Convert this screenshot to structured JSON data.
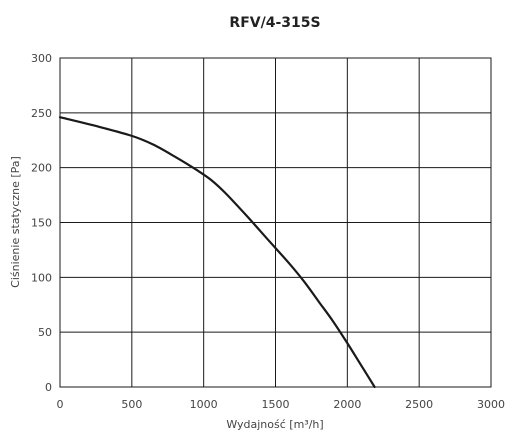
{
  "chart_data": {
    "type": "line",
    "title": "RFV/4-315S",
    "xlabel": "Wydajność [m³/h]",
    "ylabel": "Ciśnienie statyczne [Pa]",
    "xlim": [
      0,
      3000
    ],
    "ylim": [
      0,
      300
    ],
    "xticks": [
      0,
      500,
      1000,
      1500,
      2000,
      2500,
      3000
    ],
    "yticks": [
      0,
      50,
      100,
      150,
      200,
      250,
      300
    ],
    "grid": true,
    "series": [
      {
        "color": "#1a1a1a",
        "x": [
          0,
          250,
          500,
          650,
          800,
          950,
          1050,
          1150,
          1300,
          1450,
          1600,
          1700,
          1800,
          1900,
          2000,
          2100,
          2190
        ],
        "y": [
          246,
          238,
          229,
          221,
          210,
          198,
          189,
          177,
          156,
          134,
          112,
          96,
          78,
          60,
          40,
          19,
          0
        ]
      }
    ]
  }
}
